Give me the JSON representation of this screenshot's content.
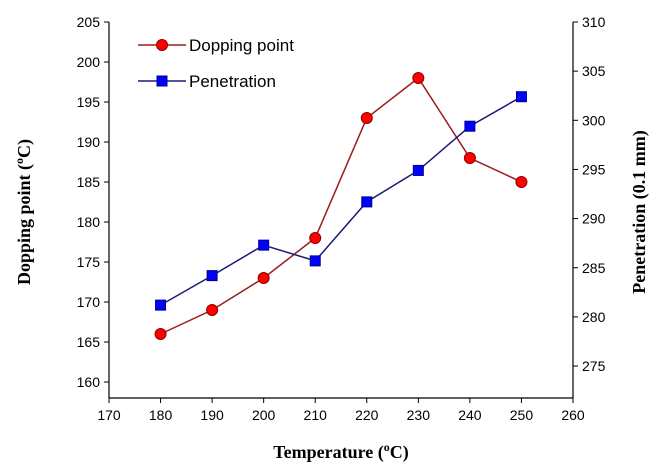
{
  "chart_data": {
    "type": "line",
    "x": [
      180,
      190,
      200,
      210,
      220,
      230,
      240,
      250
    ],
    "xlabel": "Temperature",
    "xlabel_sup": "o",
    "xlabel_unit_end": "C)",
    "xlabel_unit_start": " (",
    "ylabel": "Dopping point",
    "ylabel_sup": "o",
    "ylabel_unit_end": "C)",
    "ylabel_unit_start": " (",
    "y2label": "Penetration (0.1 mm)",
    "xlim": [
      170,
      260
    ],
    "xticks": [
      170,
      180,
      190,
      200,
      210,
      220,
      230,
      240,
      250,
      260
    ],
    "ylim": [
      158,
      205
    ],
    "yticks": [
      160,
      165,
      170,
      175,
      180,
      185,
      190,
      195,
      200,
      205
    ],
    "y2lim": [
      271.75,
      310
    ],
    "y2ticks": [
      275,
      280,
      285,
      290,
      295,
      300,
      305,
      310
    ],
    "grid": false,
    "legend_position": "top-left",
    "series": [
      {
        "name": "Dopping point",
        "axis": "left",
        "color": "#9b1b1b",
        "marker_color": "#ff0000",
        "marker": "circle",
        "values": [
          166,
          169,
          173,
          178,
          193,
          198,
          188,
          185
        ]
      },
      {
        "name": "Penetration",
        "axis": "right",
        "color": "#1a1a7a",
        "marker_color": "#0000ff",
        "marker": "square",
        "values": [
          281.2,
          284.2,
          287.3,
          285.7,
          291.7,
          294.9,
          299.4,
          302.4
        ]
      }
    ]
  }
}
